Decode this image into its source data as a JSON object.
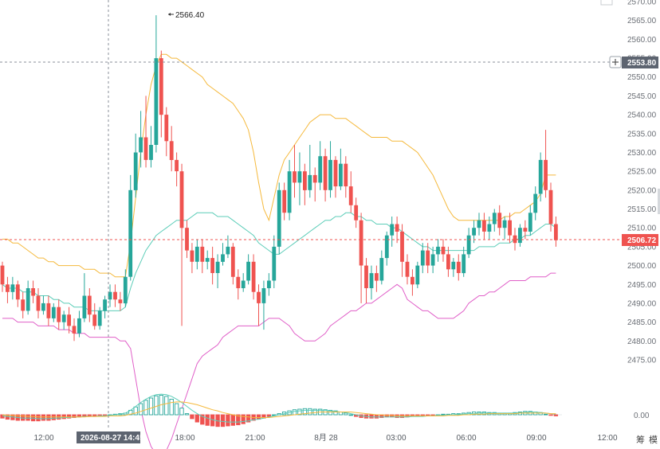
{
  "chart_data": {
    "type": "candlestick",
    "ylim": [
      2470,
      2570
    ],
    "y_ticks": [
      2475,
      2480,
      2485,
      2490,
      2495,
      2500,
      2505,
      2510,
      2515,
      2520,
      2525,
      2530,
      2535,
      2540,
      2545,
      2550,
      2555,
      2560,
      2565,
      2570
    ],
    "x_ticks": [
      "12:00",
      "18:00",
      "21:00",
      "8月 28",
      "03:00",
      "06:00",
      "09:00",
      "12:00"
    ],
    "crosshair_time_label": "2026-08-27 14:45",
    "crosshair_price_label": "2553.80",
    "last_price_label": "2506.72",
    "high_marker_label": "2566.40",
    "macd_zero_label": "0.00",
    "bottom_buttons": [
      "筹",
      "模"
    ],
    "colors": {
      "up": "#26a69a",
      "down": "#ef5350",
      "upper_band": "#f5b93c",
      "middle_band": "#5ccdb8",
      "lower_band": "#e05fc8",
      "tag_dark": "#5d6470",
      "tag_red": "#ef5350"
    },
    "candles": [
      [
        2500,
        2495,
        2501,
        2493
      ],
      [
        2495,
        2493,
        2497,
        2490
      ],
      [
        2493,
        2495,
        2497,
        2491
      ],
      [
        2495,
        2491,
        2496,
        2489
      ],
      [
        2491,
        2488,
        2493,
        2486
      ],
      [
        2488,
        2494,
        2496,
        2487
      ],
      [
        2494,
        2492,
        2496,
        2490
      ],
      [
        2492,
        2488,
        2494,
        2486
      ],
      [
        2488,
        2490,
        2492,
        2487
      ],
      [
        2490,
        2486,
        2492,
        2484
      ],
      [
        2486,
        2489,
        2490,
        2485
      ],
      [
        2489,
        2485,
        2491,
        2483
      ],
      [
        2485,
        2487,
        2488,
        2483
      ],
      [
        2487,
        2484,
        2489,
        2482
      ],
      [
        2484,
        2482,
        2486,
        2480
      ],
      [
        2482,
        2486,
        2488,
        2481
      ],
      [
        2486,
        2492,
        2498,
        2485
      ],
      [
        2492,
        2487,
        2494,
        2485
      ],
      [
        2487,
        2484,
        2490,
        2483
      ],
      [
        2484,
        2488,
        2489,
        2483
      ],
      [
        2488,
        2491,
        2492,
        2486
      ],
      [
        2491,
        2493,
        2495,
        2489
      ],
      [
        2493,
        2491,
        2495,
        2489
      ],
      [
        2491,
        2490,
        2493,
        2488
      ],
      [
        2490,
        2497,
        2499,
        2489
      ],
      [
        2497,
        2520,
        2524,
        2496
      ],
      [
        2520,
        2530,
        2535,
        2518
      ],
      [
        2530,
        2534,
        2541,
        2526
      ],
      [
        2534,
        2528,
        2545,
        2526
      ],
      [
        2528,
        2532,
        2537,
        2526
      ],
      [
        2532,
        2555,
        2566.4,
        2530
      ],
      [
        2555,
        2540,
        2557,
        2534
      ],
      [
        2540,
        2533,
        2542,
        2529
      ],
      [
        2533,
        2528,
        2537,
        2525
      ],
      [
        2528,
        2525,
        2530,
        2521
      ],
      [
        2525,
        2510,
        2527,
        2484
      ],
      [
        2510,
        2504,
        2512,
        2502
      ],
      [
        2504,
        2501,
        2506,
        2498
      ],
      [
        2501,
        2505,
        2507,
        2499
      ],
      [
        2505,
        2501,
        2507,
        2498
      ],
      [
        2501,
        2502,
        2504,
        2499
      ],
      [
        2502,
        2498,
        2505,
        2495
      ],
      [
        2498,
        2501,
        2503,
        2494
      ],
      [
        2501,
        2503,
        2506,
        2500
      ],
      [
        2503,
        2505,
        2508,
        2502
      ],
      [
        2505,
        2497,
        2506,
        2495
      ],
      [
        2497,
        2494,
        2499,
        2491
      ],
      [
        2494,
        2496,
        2498,
        2493
      ],
      [
        2496,
        2501,
        2503,
        2495
      ],
      [
        2501,
        2493,
        2503,
        2491
      ],
      [
        2493,
        2490,
        2495,
        2484
      ],
      [
        2490,
        2494,
        2496,
        2483
      ],
      [
        2494,
        2496,
        2498,
        2492
      ],
      [
        2496,
        2505,
        2508,
        2494
      ],
      [
        2505,
        2520,
        2522,
        2503
      ],
      [
        2520,
        2514,
        2522,
        2512
      ],
      [
        2514,
        2525,
        2528,
        2512
      ],
      [
        2525,
        2522,
        2532,
        2518
      ],
      [
        2522,
        2525,
        2530,
        2516
      ],
      [
        2525,
        2520,
        2527,
        2516
      ],
      [
        2520,
        2524,
        2532,
        2518
      ],
      [
        2524,
        2522,
        2526,
        2517
      ],
      [
        2522,
        2529,
        2533,
        2520
      ],
      [
        2529,
        2520,
        2531,
        2517
      ],
      [
        2520,
        2528,
        2533,
        2518
      ],
      [
        2528,
        2521,
        2529,
        2518
      ],
      [
        2521,
        2527,
        2531,
        2520
      ],
      [
        2527,
        2521,
        2529,
        2518
      ],
      [
        2521,
        2516,
        2525,
        2514
      ],
      [
        2516,
        2512,
        2518,
        2510
      ],
      [
        2512,
        2500,
        2514,
        2490
      ],
      [
        2500,
        2494,
        2502,
        2490
      ],
      [
        2494,
        2498,
        2500,
        2491
      ],
      [
        2498,
        2496,
        2500,
        2493
      ],
      [
        2496,
        2502,
        2504,
        2495
      ],
      [
        2502,
        2508,
        2509,
        2500
      ],
      [
        2508,
        2511,
        2513,
        2505
      ],
      [
        2511,
        2509,
        2513,
        2506
      ],
      [
        2509,
        2501,
        2511,
        2497
      ],
      [
        2501,
        2497,
        2503,
        2495
      ],
      [
        2497,
        2495,
        2499,
        2492
      ],
      [
        2495,
        2500,
        2501,
        2494
      ],
      [
        2500,
        2504,
        2506,
        2498
      ],
      [
        2504,
        2500,
        2506,
        2498
      ],
      [
        2500,
        2503,
        2505,
        2498
      ],
      [
        2503,
        2505,
        2507,
        2501
      ],
      [
        2505,
        2503,
        2507,
        2501
      ],
      [
        2503,
        2499,
        2505,
        2497
      ],
      [
        2499,
        2501,
        2502,
        2497
      ],
      [
        2501,
        2498,
        2503,
        2496
      ],
      [
        2498,
        2503,
        2505,
        2497
      ],
      [
        2503,
        2508,
        2510,
        2502
      ],
      [
        2508,
        2510,
        2512,
        2506
      ],
      [
        2510,
        2512,
        2514,
        2508
      ],
      [
        2512,
        2509,
        2514,
        2507
      ],
      [
        2509,
        2511,
        2513,
        2507
      ],
      [
        2511,
        2514,
        2515,
        2509
      ],
      [
        2514,
        2510,
        2516,
        2508
      ],
      [
        2510,
        2512,
        2513,
        2507
      ],
      [
        2512,
        2508,
        2514,
        2506
      ],
      [
        2508,
        2506,
        2510,
        2504
      ],
      [
        2506,
        2510,
        2511,
        2505
      ],
      [
        2510,
        2509,
        2512,
        2507
      ],
      [
        2509,
        2514,
        2516,
        2508
      ],
      [
        2514,
        2519,
        2521,
        2512
      ],
      [
        2519,
        2528,
        2530,
        2517
      ],
      [
        2528,
        2520,
        2536,
        2518
      ],
      [
        2520,
        2511,
        2522,
        2509
      ],
      [
        2511,
        2506.72,
        2513,
        2505
      ]
    ],
    "upper_band": [
      2507,
      2507,
      2506,
      2506,
      2505,
      2504,
      2503,
      2502,
      2502,
      2501,
      2501,
      2500,
      2500,
      2500,
      2500,
      2500,
      2499,
      2499,
      2499,
      2498,
      2498,
      2498,
      2497,
      2497,
      2497,
      2506,
      2518,
      2530,
      2540,
      2548,
      2553,
      2556,
      2556,
      2555,
      2555,
      2554,
      2553,
      2552,
      2551,
      2550,
      2548,
      2547,
      2546,
      2545,
      2544,
      2543,
      2541,
      2539,
      2536,
      2530,
      2522,
      2515,
      2512,
      2518,
      2524,
      2528,
      2530,
      2532,
      2534,
      2536,
      2538,
      2539,
      2540,
      2540,
      2540,
      2539,
      2539,
      2539,
      2538,
      2537,
      2536,
      2535,
      2534,
      2534,
      2534,
      2534,
      2533,
      2533,
      2533,
      2532,
      2531,
      2530,
      2528,
      2526,
      2524,
      2521,
      2518,
      2515,
      2513,
      2512,
      2512,
      2512,
      2512,
      2512,
      2512,
      2512,
      2512,
      2512,
      2513,
      2513,
      2514,
      2514,
      2515,
      2516,
      2517,
      2519,
      2524,
      2524,
      2524
    ],
    "middle_band": [
      2495,
      2494,
      2494,
      2494,
      2493,
      2493,
      2493,
      2492,
      2492,
      2492,
      2491,
      2491,
      2490,
      2490,
      2489,
      2489,
      2489,
      2488,
      2488,
      2488,
      2488,
      2488,
      2488,
      2488,
      2489,
      2494,
      2498,
      2501,
      2504,
      2506,
      2508,
      2509,
      2510,
      2511,
      2512,
      2512,
      2512,
      2513,
      2514,
      2514,
      2514,
      2514,
      2513,
      2513,
      2513,
      2512,
      2511,
      2510,
      2509,
      2508,
      2506,
      2505,
      2504,
      2503,
      2503,
      2504,
      2505,
      2506,
      2507,
      2508,
      2509,
      2510,
      2511,
      2512,
      2512,
      2513,
      2513,
      2514,
      2514,
      2513,
      2513,
      2512,
      2512,
      2511,
      2511,
      2511,
      2510,
      2510,
      2509,
      2508,
      2507,
      2506,
      2505,
      2505,
      2504,
      2504,
      2504,
      2504,
      2504,
      2504,
      2504,
      2504,
      2504,
      2505,
      2505,
      2505,
      2505,
      2506,
      2506,
      2506,
      2507,
      2507,
      2508,
      2508,
      2509,
      2510,
      2511,
      2511,
      2510
    ],
    "lower_band": [
      2486,
      2486,
      2486,
      2485,
      2485,
      2485,
      2485,
      2484,
      2484,
      2484,
      2484,
      2483,
      2483,
      2483,
      2482,
      2482,
      2482,
      2481,
      2481,
      2481,
      2481,
      2481,
      2481,
      2480,
      2480,
      2478,
      2470,
      2462,
      2456,
      2452,
      2450,
      2450,
      2451,
      2454,
      2458,
      2462,
      2466,
      2470,
      2474,
      2476,
      2477,
      2478,
      2479,
      2481,
      2482,
      2483,
      2484,
      2484,
      2484,
      2484,
      2484,
      2485,
      2486,
      2486,
      2486,
      2485,
      2484,
      2482,
      2481,
      2480,
      2480,
      2480,
      2481,
      2482,
      2484,
      2485,
      2486,
      2487,
      2488,
      2488,
      2489,
      2490,
      2490,
      2491,
      2492,
      2493,
      2494,
      2495,
      2494,
      2491,
      2490,
      2489,
      2488,
      2488,
      2487,
      2486,
      2486,
      2486,
      2486,
      2487,
      2488,
      2490,
      2491,
      2492,
      2492,
      2493,
      2493,
      2494,
      2495,
      2496,
      2496,
      2496,
      2496,
      2497,
      2497,
      2497,
      2497,
      2498,
      2498
    ],
    "macd_hist": [
      -0.6,
      -0.8,
      -0.9,
      -1,
      -1,
      -1,
      -1.1,
      -1.1,
      -1,
      -1,
      -0.9,
      -0.8,
      -0.7,
      -0.6,
      -0.5,
      -0.4,
      -0.3,
      -0.3,
      -0.3,
      -0.2,
      -0.1,
      0,
      0.1,
      0.2,
      0.3,
      0.8,
      1.4,
      2,
      2.6,
      3,
      3.4,
      3.5,
      3.3,
      2.8,
      2,
      1.2,
      0.2,
      -0.7,
      -1.3,
      -1.7,
      -1.9,
      -2,
      -2.1,
      -2.1,
      -2,
      -1.9,
      -1.8,
      -1.6,
      -1.3,
      -1,
      -0.8,
      -0.6,
      -0.3,
      0,
      0.2,
      0.5,
      0.7,
      0.9,
      1,
      1.1,
      1.1,
      1,
      1,
      0.9,
      0.8,
      0.7,
      0.5,
      0.3,
      0,
      -0.3,
      -0.5,
      -0.6,
      -0.6,
      -0.6,
      -0.5,
      -0.4,
      -0.4,
      -0.5,
      -0.5,
      -0.4,
      -0.3,
      -0.3,
      -0.2,
      -0.1,
      -0.1,
      0,
      0.1,
      0.1,
      0.2,
      0.2,
      0.3,
      0.4,
      0.5,
      0.5,
      0.5,
      0.4,
      0.4,
      0.3,
      0.3,
      0.3,
      0.4,
      0.5,
      0.6,
      0.6,
      0.5,
      0.4,
      0.1,
      -0.1,
      -0.2
    ],
    "macd_dif": [
      -0.2,
      -0.3,
      -0.4,
      -0.5,
      -0.6,
      -0.6,
      -0.6,
      -0.7,
      -0.7,
      -0.7,
      -0.6,
      -0.6,
      -0.5,
      -0.5,
      -0.4,
      -0.4,
      -0.3,
      -0.3,
      -0.3,
      -0.2,
      -0.2,
      -0.1,
      0,
      0.1,
      0.3,
      0.8,
      1.5,
      2.2,
      2.8,
      3.3,
      3.6,
      3.7,
      3.6,
      3.3,
      2.8,
      2.2,
      1.5,
      0.8,
      0.2,
      -0.3,
      -0.6,
      -0.9,
      -1.1,
      -1.2,
      -1.3,
      -1.3,
      -1.3,
      -1.2,
      -1.1,
      -0.9,
      -0.8,
      -0.6,
      -0.4,
      -0.2,
      0,
      0.2,
      0.4,
      0.6,
      0.7,
      0.8,
      0.8,
      0.8,
      0.8,
      0.8,
      0.7,
      0.6,
      0.5,
      0.4,
      0.2,
      0,
      -0.2,
      -0.3,
      -0.4,
      -0.4,
      -0.4,
      -0.4,
      -0.4,
      -0.4,
      -0.4,
      -0.4,
      -0.3,
      -0.3,
      -0.3,
      -0.2,
      -0.2,
      -0.1,
      -0.1,
      0,
      0,
      0.1,
      0.1,
      0.2,
      0.2,
      0.3,
      0.3,
      0.3,
      0.3,
      0.3,
      0.3,
      0.3,
      0.3,
      0.4,
      0.4,
      0.5,
      0.5,
      0.4,
      0.3,
      0.2,
      0.1
    ],
    "macd_dea": [
      0,
      -0.1,
      -0.1,
      -0.2,
      -0.2,
      -0.3,
      -0.3,
      -0.4,
      -0.4,
      -0.4,
      -0.4,
      -0.4,
      -0.4,
      -0.4,
      -0.4,
      -0.4,
      -0.4,
      -0.3,
      -0.3,
      -0.3,
      -0.3,
      -0.2,
      -0.2,
      -0.2,
      -0.1,
      0.1,
      0.3,
      0.6,
      0.9,
      1.2,
      1.5,
      1.8,
      2,
      2.2,
      2.3,
      2.3,
      2.2,
      2,
      1.8,
      1.5,
      1.2,
      0.9,
      0.7,
      0.4,
      0.2,
      0,
      -0.2,
      -0.3,
      -0.4,
      -0.5,
      -0.5,
      -0.5,
      -0.5,
      -0.4,
      -0.3,
      -0.2,
      -0.1,
      0,
      0.1,
      0.2,
      0.3,
      0.4,
      0.5,
      0.5,
      0.5,
      0.5,
      0.5,
      0.5,
      0.5,
      0.4,
      0.3,
      0.2,
      0.1,
      0,
      0,
      -0.1,
      -0.1,
      -0.2,
      -0.2,
      -0.2,
      -0.2,
      -0.2,
      -0.2,
      -0.2,
      -0.2,
      -0.2,
      -0.2,
      -0.1,
      -0.1,
      -0.1,
      0,
      0,
      0.1,
      0.1,
      0.1,
      0.2,
      0.2,
      0.2,
      0.2,
      0.2,
      0.2,
      0.3,
      0.3,
      0.3,
      0.3,
      0.3,
      0.3,
      0.2,
      0.2
    ]
  }
}
